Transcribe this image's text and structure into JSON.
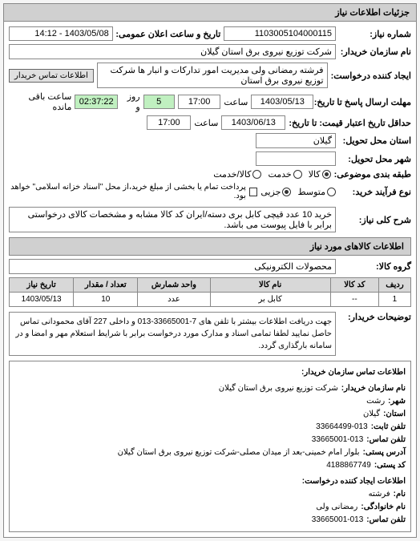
{
  "panel_title": "جزئیات اطلاعات نیاز",
  "header": {
    "req_number_label": "شماره نیاز:",
    "req_number": "1103005104000115",
    "pub_datetime_label": "تاریخ و ساعت اعلان عمومی:",
    "pub_datetime": "1403/05/08 - 14:12",
    "requester_label": "نام سازمان خریدار:",
    "requester": "شرکت توزیع نیروی برق استان گیلان",
    "creator_label": "ایجاد کننده درخواست:",
    "creator": "فرشته رمضانی ولی مدیریت امور تدارکات و انبار ها شرکت توزیع نیروی برق استان",
    "contact_btn": "اطلاعات تماس خریدار",
    "deadline_label": "مهلت ارسال پاسخ تا تاریخ:",
    "deadline_date": "1403/05/13",
    "deadline_time_label": "ساعت",
    "deadline_time": "17:00",
    "remain_days": "5",
    "remain_days_label": "روز و",
    "remain_time": "02:37:22",
    "remain_suffix": "ساعت باقی مانده",
    "validity_label": "حداقل تاریخ اعتبار قیمت: تا تاریخ:",
    "validity_date": "1403/06/13",
    "validity_time": "17:00",
    "province_label": "استان محل تحویل:",
    "province": "گیلان",
    "city_label": "شهر محل تحویل:",
    "category_label": "طبقه بندی موضوعی:",
    "radios": {
      "kala": "کالا",
      "khadmat": "خدمت",
      "kala_khadmat": "کالا/خدمت"
    },
    "process_label": "نوع فرآیند خرید:",
    "process_radios": {
      "mostagel": "متوسط",
      "jozi": "جزیی"
    },
    "payment_note": "پرداخت تمام یا بخشی از مبلغ خرید،از محل \"اسناد خزانه اسلامی\" خواهد بود."
  },
  "need_summary": {
    "label": "شرح کلی نیاز:",
    "text": "خرید 10 عدد قیچی کابل بری دسته/ایران کد کالا مشابه و مشخصات کالای درخواستی برابر با فایل پیوست می باشد."
  },
  "items_section_title": "اطلاعات کالاهای مورد نیاز",
  "items_group_label": "گروه کالا:",
  "items_group": "محصولات الکترونیکی",
  "items_table": {
    "columns": [
      "ردیف",
      "کد کالا",
      "نام کالا",
      "واحد شمارش",
      "تعداد / مقدار",
      "تاریخ نیاز"
    ],
    "rows": [
      [
        "1",
        "--",
        "کابل بر",
        "عدد",
        "10",
        "1403/05/13"
      ]
    ],
    "col_widths": [
      "8%",
      "12%",
      "30%",
      "18%",
      "16%",
      "16%"
    ]
  },
  "buyer_notes": {
    "label": "توضیحات خریدار:",
    "text": "جهت دریافت اطلاعات بیشتر با تلفن های 7-33665001-013 و داخلی 227 آقای محمودانی تماس حاصل نمایید لطفا تمامی اسناد و مدارک مورد درخواست برابر با شرایط استعلام مهر و امضا و در سامانه بارگذاری گردد."
  },
  "contact_section_title": "اطلاعات تماس سازمان خریدار:",
  "contact": {
    "org_label": "نام سازمان خریدار:",
    "org": "شرکت توزیع نیروی برق استان گیلان",
    "city_label": "شهر:",
    "city": "رشت",
    "province_label": "استان:",
    "province": "گیلان",
    "phone_label": "تلفن ثابت:",
    "phone": "33664499-013",
    "fax_label": "تلفن تماس:",
    "fax": "33665001-013",
    "address_label": "آدرس پستی:",
    "address": "بلوار امام خمینی-بعد از میدان مصلی-شرکت توزیع نیروی برق استان گیلان",
    "postal_label": "کد پستی:",
    "postal": "4188867749",
    "creator_section": "اطلاعات ایجاد کننده درخواست:",
    "name_label": "نام:",
    "name": "فرشته",
    "family_label": "نام خانوادگی:",
    "family": "رمضانی ولی",
    "tel_label": "تلفن تماس:",
    "tel": "33665001-013"
  },
  "colors": {
    "panel_bg": "#ffffff",
    "header_bg": "#d0d0d0",
    "border": "#888888",
    "green_field": "#c0f0c0",
    "th_bg": "#d8d8d8"
  }
}
